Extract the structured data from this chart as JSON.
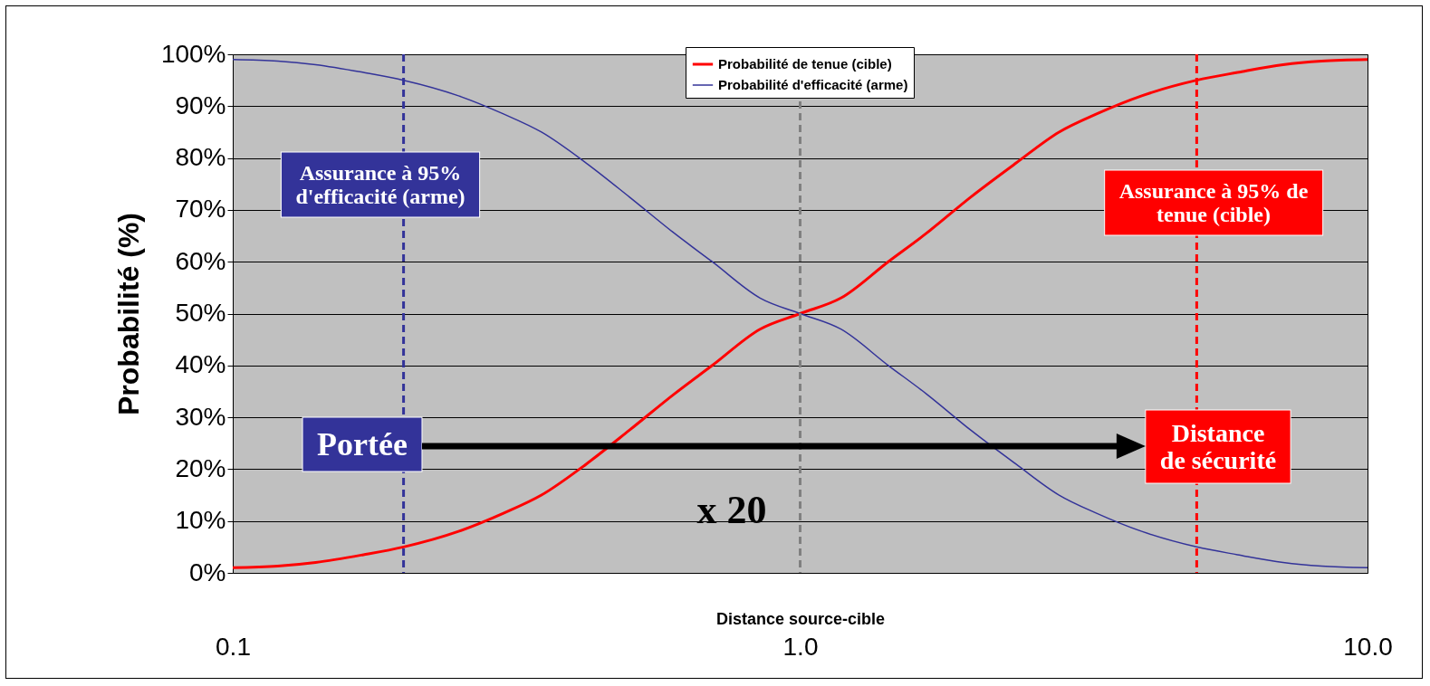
{
  "chart_data": {
    "type": "line",
    "xlabel": "Distance source-cible",
    "ylabel": "Probabilité  (%)",
    "x": [
      0.1,
      0.12,
      0.14,
      0.17,
      0.2,
      0.25,
      0.3,
      0.35,
      0.42,
      0.5,
      0.6,
      0.7,
      0.85,
      1,
      1.18,
      1.43,
      1.67,
      2,
      2.4,
      2.86,
      3.33,
      4,
      5,
      5.9,
      7.1,
      8.3,
      10
    ],
    "series": [
      {
        "name": "Probabilité de tenue (cible)",
        "color": "#ff0000",
        "values": [
          1,
          1.3,
          2,
          3.5,
          5,
          8,
          11.5,
          15,
          21,
          27.5,
          34.5,
          40,
          47,
          50,
          53,
          60,
          65.5,
          72.5,
          79,
          85,
          88.5,
          92,
          95,
          96.5,
          98,
          98.7,
          99
        ]
      },
      {
        "name": "Probabilité d'efficacité (arme)",
        "color": "#333399",
        "values": [
          99,
          98.7,
          98,
          96.5,
          95,
          92,
          88.5,
          85,
          79,
          72.5,
          65.5,
          60,
          53,
          50,
          47,
          40,
          34.5,
          27.5,
          21,
          15,
          11.5,
          8,
          5,
          3.5,
          2,
          1.3,
          1
        ]
      }
    ],
    "log": "x",
    "xlim": [
      0.1,
      10
    ],
    "xticks": [
      {
        "value": 0.1,
        "label": "0.1"
      },
      {
        "value": 1,
        "label": "1.0"
      },
      {
        "value": 10,
        "label": "10.0"
      }
    ],
    "ylim": [
      0,
      100
    ],
    "yticks": [
      {
        "value": 0,
        "label": "0%"
      },
      {
        "value": 10,
        "label": "10%"
      },
      {
        "value": 20,
        "label": "20%"
      },
      {
        "value": 30,
        "label": "30%"
      },
      {
        "value": 40,
        "label": "40%"
      },
      {
        "value": 50,
        "label": "50%"
      },
      {
        "value": 60,
        "label": "60%"
      },
      {
        "value": 70,
        "label": "70%"
      },
      {
        "value": 80,
        "label": "80%"
      },
      {
        "value": 90,
        "label": "90%"
      },
      {
        "value": 100,
        "label": "100%"
      }
    ],
    "grid": "y",
    "legend": "top",
    "line_style": "solid",
    "marker": "none",
    "ref_lines": [
      {
        "axis": "x",
        "value": 0.2,
        "color": "#333399",
        "line_style": "dashed"
      },
      {
        "axis": "x",
        "value": 1,
        "color": "#808080",
        "line_style": "dashed"
      },
      {
        "axis": "x",
        "value": 5,
        "color": "#ff0000",
        "line_style": "dashed"
      }
    ],
    "annotations": [
      "Assurance à 95%\nd'efficacité (arme)",
      "Assurance à 95% de\ntenue (cible)",
      "Portée",
      "Distance\nde sécurité",
      "x 20"
    ]
  }
}
